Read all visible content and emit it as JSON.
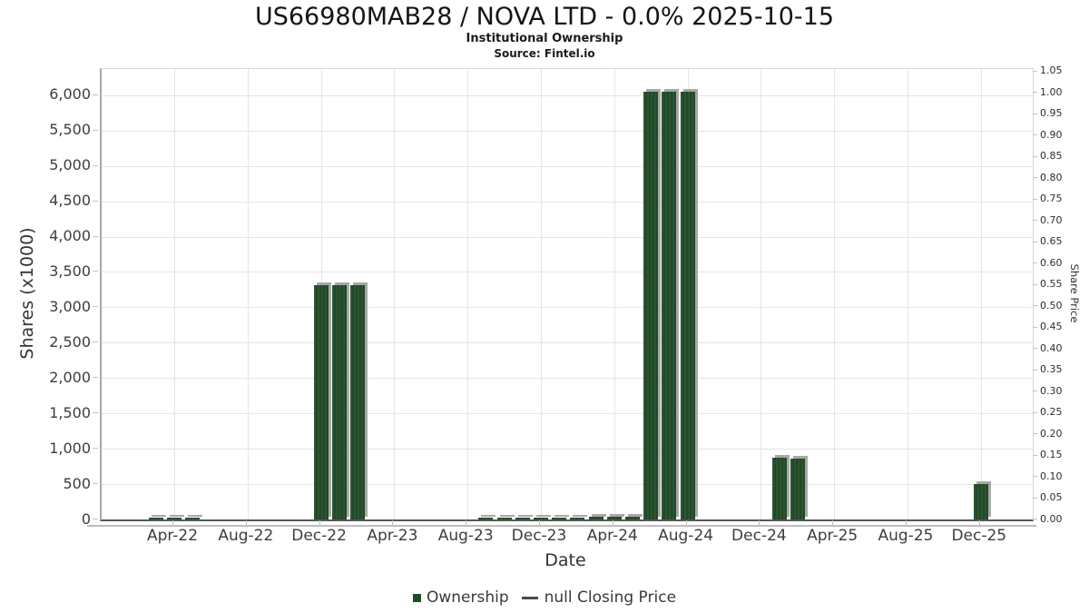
{
  "header": {
    "title": "US66980MAB28 / NOVA LTD - 0.0% 2025-10-15",
    "subtitle": "Institutional Ownership",
    "source": "Source: Fintel.io"
  },
  "chart_data": {
    "type": "bar",
    "title": "US66980MAB28 / NOVA LTD - 0.0% 2025-10-15",
    "subtitle": "Institutional Ownership",
    "source": "Source: Fintel.io",
    "xlabel": "Date",
    "ylabel_left": "Shares (x1000)",
    "ylabel_right": "Share Price",
    "grid": "on",
    "legend_position": "bottom-center",
    "ylim_left": [
      0,
      6370
    ],
    "ylim_right": [
      0,
      1.0555
    ],
    "y_left_ticks": [
      {
        "value": 0,
        "label": "0"
      },
      {
        "value": 500,
        "label": "500"
      },
      {
        "value": 1000,
        "label": "1,000"
      },
      {
        "value": 1500,
        "label": "1,500"
      },
      {
        "value": 2000,
        "label": "2,000"
      },
      {
        "value": 2500,
        "label": "2,500"
      },
      {
        "value": 3000,
        "label": "3,000"
      },
      {
        "value": 3500,
        "label": "3,500"
      },
      {
        "value": 4000,
        "label": "4,000"
      },
      {
        "value": 4500,
        "label": "4,500"
      },
      {
        "value": 5000,
        "label": "5,000"
      },
      {
        "value": 5500,
        "label": "5,500"
      },
      {
        "value": 6000,
        "label": "6,000"
      }
    ],
    "y_right_tick_labels": [
      "0.00",
      "0.05",
      "0.10",
      "0.15",
      "0.20",
      "0.25",
      "0.30",
      "0.35",
      "0.40",
      "0.45",
      "0.50",
      "0.55",
      "0.60",
      "0.65",
      "0.70",
      "0.75",
      "0.80",
      "0.85",
      "0.90",
      "0.95",
      "1.00",
      "1.05"
    ],
    "x_ticks": [
      {
        "label": "Apr-22",
        "month": "2022-04"
      },
      {
        "label": "Aug-22",
        "month": "2022-08"
      },
      {
        "label": "Dec-22",
        "month": "2022-12"
      },
      {
        "label": "Apr-23",
        "month": "2023-04"
      },
      {
        "label": "Aug-23",
        "month": "2023-08"
      },
      {
        "label": "Dec-23",
        "month": "2023-12"
      },
      {
        "label": "Apr-24",
        "month": "2024-04"
      },
      {
        "label": "Aug-24",
        "month": "2024-08"
      },
      {
        "label": "Dec-24",
        "month": "2024-12"
      },
      {
        "label": "Apr-25",
        "month": "2025-04"
      },
      {
        "label": "Aug-25",
        "month": "2025-08"
      },
      {
        "label": "Dec-25",
        "month": "2025-12"
      }
    ],
    "series": [
      {
        "name": "Ownership",
        "type": "bar",
        "units": "shares x1000",
        "points": [
          {
            "month": "2022-03",
            "value": 20
          },
          {
            "month": "2022-04",
            "value": 20
          },
          {
            "month": "2022-05",
            "value": 20
          },
          {
            "month": "2022-12",
            "value": 3310
          },
          {
            "month": "2023-01",
            "value": 3310
          },
          {
            "month": "2023-02",
            "value": 3310
          },
          {
            "month": "2023-09",
            "value": 22
          },
          {
            "month": "2023-10",
            "value": 22
          },
          {
            "month": "2023-11",
            "value": 22
          },
          {
            "month": "2023-12",
            "value": 22
          },
          {
            "month": "2024-01",
            "value": 25
          },
          {
            "month": "2024-02",
            "value": 28
          },
          {
            "month": "2024-03",
            "value": 40
          },
          {
            "month": "2024-04",
            "value": 40
          },
          {
            "month": "2024-05",
            "value": 42
          },
          {
            "month": "2024-06",
            "value": 6050
          },
          {
            "month": "2024-07",
            "value": 6055
          },
          {
            "month": "2024-08",
            "value": 6050
          },
          {
            "month": "2025-01",
            "value": 870
          },
          {
            "month": "2025-02",
            "value": 860
          },
          {
            "month": "2025-12",
            "value": 495
          }
        ]
      },
      {
        "name": "null Closing Price",
        "type": "line",
        "points": []
      }
    ]
  },
  "legend": {
    "ownership_label": "Ownership",
    "closing_price_label": "null Closing Price"
  },
  "colors": {
    "bar_green": "#2b5531",
    "bar_green_stripe": "#224829",
    "bar_shadow": "#a8a8a8",
    "legend_square_green": "#1d4f26",
    "legend_dash_gray": "#4a4a4a",
    "gridline": "#e5e5e5",
    "tick_text": "#3d3d3d"
  }
}
